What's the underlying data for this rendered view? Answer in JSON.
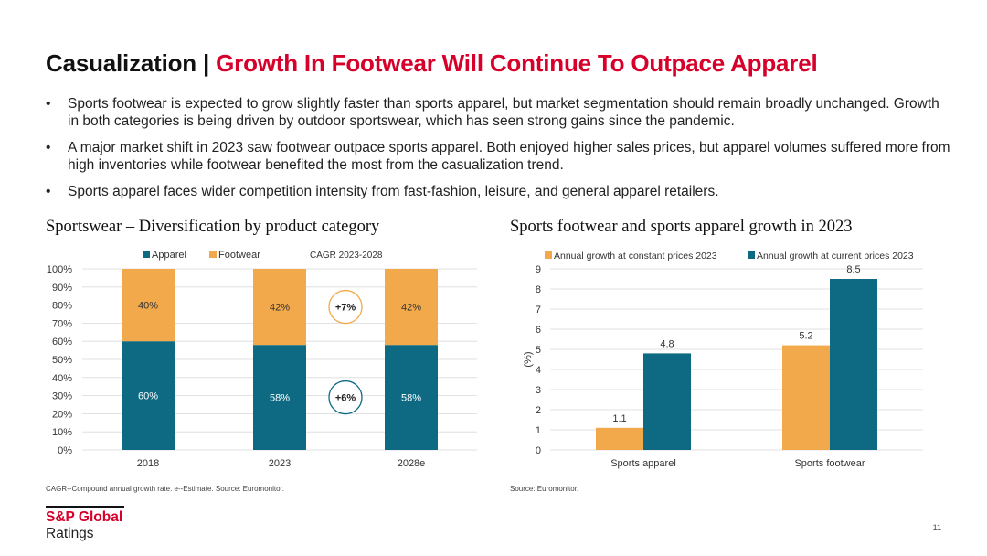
{
  "header": {
    "title_part1": "Casualization | ",
    "title_part2": "Growth In Footwear Will Continue To Outpace Apparel"
  },
  "bullets": [
    "Sports footwear is expected to grow slightly faster than sports apparel, but market segmentation should remain broadly unchanged. Growth in both categories is being driven by outdoor sportswear, which has seen strong gains since the pandemic.",
    "A major market shift in 2023 saw footwear outpace sports apparel. Both enjoyed higher sales prices, but apparel volumes suffered more from high inventories while footwear benefited the most from the casualization trend.",
    "Sports apparel faces wider competition intensity from fast-fashion, leisure, and general apparel retailers."
  ],
  "colors": {
    "teal": "#0e6a83",
    "orange": "#f2a94b",
    "red": "#d6002a"
  },
  "chart_data": [
    {
      "type": "bar",
      "stacked": true,
      "title": "Sportswear – Diversification by product category",
      "categories": [
        "2018",
        "2023",
        "2028e"
      ],
      "series": [
        {
          "name": "Apparel",
          "values": [
            60,
            58,
            58
          ],
          "labels": [
            "60%",
            "58%",
            "58%"
          ],
          "color": "#0e6a83"
        },
        {
          "name": "Footwear",
          "values": [
            40,
            42,
            42
          ],
          "labels": [
            "40%",
            "42%",
            "42%"
          ],
          "color": "#f2a94b"
        }
      ],
      "ylim": [
        0,
        100
      ],
      "yticks": [
        "0%",
        "10%",
        "20%",
        "30%",
        "40%",
        "50%",
        "60%",
        "70%",
        "80%",
        "90%",
        "100%"
      ],
      "legend_extra": "CAGR  2023-2028",
      "annotations": [
        {
          "text": "+7%",
          "series": "Footwear",
          "color": "#f2a94b"
        },
        {
          "text": "+6%",
          "series": "Apparel",
          "color": "#0e6a83"
        }
      ],
      "legend": "top",
      "grid": true
    },
    {
      "type": "bar",
      "title": "Sports footwear and sports apparel growth in 2023",
      "categories": [
        "Sports apparel",
        "Sports footwear"
      ],
      "series": [
        {
          "name": "Annual growth at constant prices 2023",
          "values": [
            1.1,
            5.2
          ],
          "labels": [
            "1.1",
            "5.2"
          ],
          "color": "#f2a94b"
        },
        {
          "name": "Annual growth at current prices 2023",
          "values": [
            4.8,
            8.5
          ],
          "labels": [
            "4.8",
            "8.5"
          ],
          "color": "#0e6a83"
        }
      ],
      "ylabel": "(%)",
      "ylim": [
        0,
        9
      ],
      "yticks": [
        "0",
        "1",
        "2",
        "3",
        "4",
        "5",
        "6",
        "7",
        "8",
        "9"
      ],
      "legend": "top",
      "grid": true
    }
  ],
  "notes": {
    "left": "CAGR--Compound annual growth rate. e--Estimate. Source: Euromonitor.",
    "right": "Source: Euromonitor."
  },
  "footer": {
    "logo_line1": "S&P Global",
    "logo_line2": "Ratings",
    "page_number": "11"
  }
}
